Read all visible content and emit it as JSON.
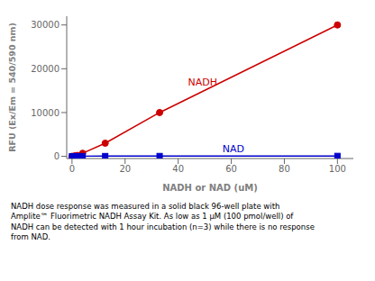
{
  "chart_data": {
    "type": "line",
    "x": [
      0,
      1,
      2,
      4,
      12.5,
      33,
      100
    ],
    "series": [
      {
        "name": "NADH",
        "color": "#cc0000",
        "marker": "circle",
        "values": [
          0,
          100,
          200,
          700,
          3000,
          10000,
          30000
        ]
      },
      {
        "name": "NAD",
        "color": "#0000cc",
        "marker": "square",
        "values": [
          0,
          20,
          30,
          40,
          50,
          60,
          80
        ]
      }
    ],
    "xlabel": "NADH or NAD (uM)",
    "ylabel": "RFU (Ex/Em = 540/590 nm)",
    "xlim": [
      -2,
      106
    ],
    "ylim": [
      -500,
      32000
    ],
    "xticks": [
      0,
      20,
      40,
      60,
      80,
      100
    ],
    "yticks": [
      0,
      10000,
      20000,
      30000
    ],
    "grid": false,
    "annotations": [
      {
        "text": "NADH",
        "x": 42,
        "y": 17000
      },
      {
        "text": "NAD",
        "x": 55,
        "y": 1800
      }
    ],
    "caption": "NADH dose response was measured in a solid black 96-well plate with\nAmplite™ Fluorimetric NADH Assay Kit. As low as 1 μM (100 pmol/well) of\nNADH can be detected with 1 hour incubation (n=3) while there is no response\nfrom NAD."
  }
}
